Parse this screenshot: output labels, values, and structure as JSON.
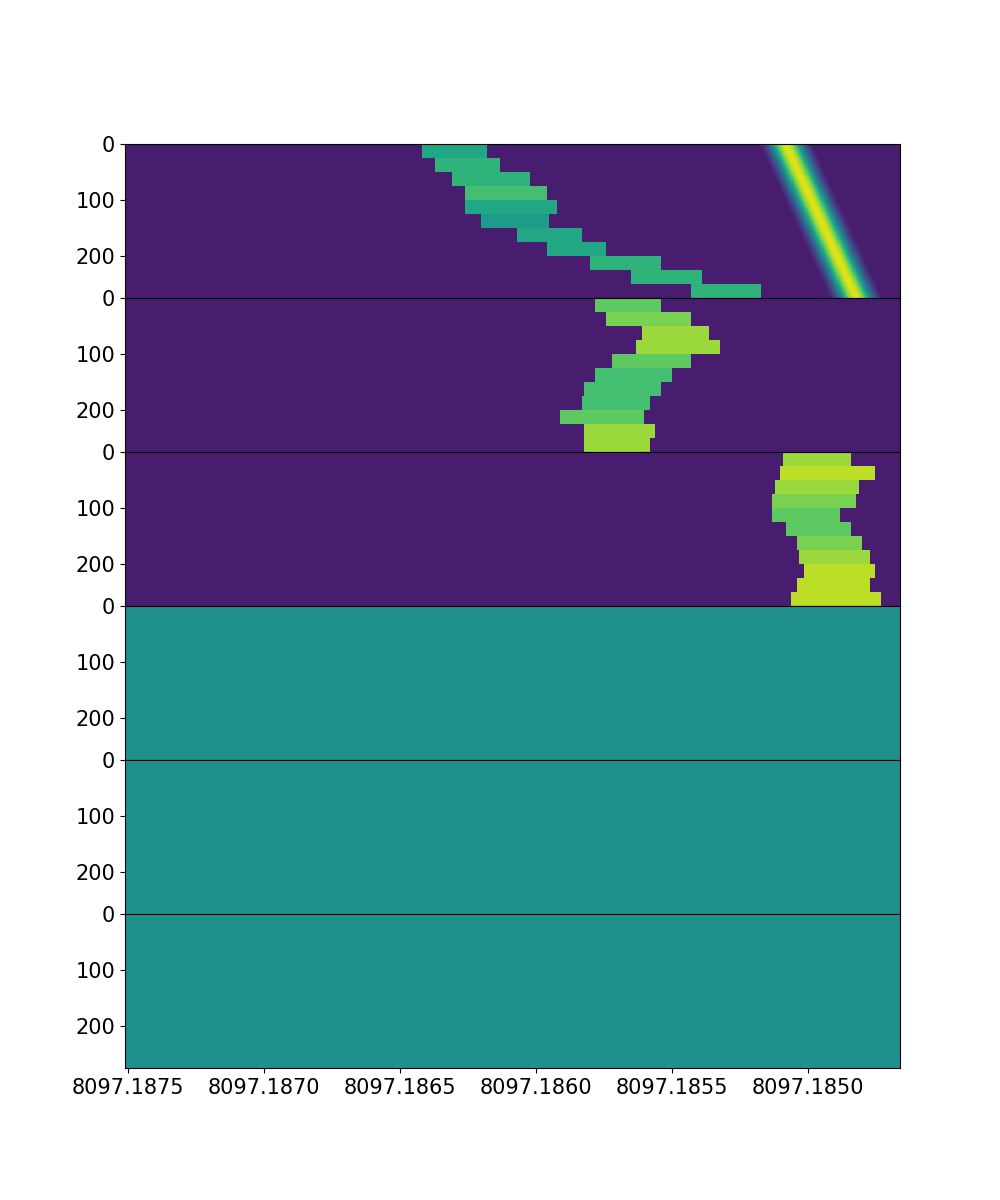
{
  "chart_data": [
    {
      "type": "heatmap",
      "color": "viridis",
      "color_range": [
        0,
        1
      ],
      "background": 0.08,
      "xlim": [
        8097.18751,
        8097.18466
      ],
      "ylim": [
        275,
        0
      ],
      "yticks": [
        0,
        100,
        200
      ],
      "tick_labels": "y",
      "bands": [
        {
          "y0": 0,
          "y1": 25,
          "f0": 8097.18642,
          "f1": 8097.18618,
          "level": 0.6
        },
        {
          "y0": 25,
          "y1": 50,
          "f0": 8097.18637,
          "f1": 8097.18613,
          "level": 0.65
        },
        {
          "y0": 50,
          "y1": 75,
          "f0": 8097.18631,
          "f1": 8097.18602,
          "level": 0.65
        },
        {
          "y0": 75,
          "y1": 100,
          "f0": 8097.18626,
          "f1": 8097.18596,
          "level": 0.7
        },
        {
          "y0": 100,
          "y1": 125,
          "f0": 8097.18626,
          "f1": 8097.18592,
          "level": 0.6
        },
        {
          "y0": 125,
          "y1": 150,
          "f0": 8097.1862,
          "f1": 8097.18595,
          "level": 0.55
        },
        {
          "y0": 150,
          "y1": 175,
          "f0": 8097.18607,
          "f1": 8097.18583,
          "level": 0.6
        },
        {
          "y0": 175,
          "y1": 200,
          "f0": 8097.18596,
          "f1": 8097.18574,
          "level": 0.6
        },
        {
          "y0": 200,
          "y1": 225,
          "f0": 8097.1858,
          "f1": 8097.18554,
          "level": 0.65
        },
        {
          "y0": 225,
          "y1": 250,
          "f0": 8097.18565,
          "f1": 8097.18539,
          "level": 0.65
        },
        {
          "y0": 250,
          "y1": 275,
          "f0": 8097.18543,
          "f1": 8097.18517,
          "level": 0.65
        }
      ],
      "drift_lines": [
        {
          "center_start": 8097.18508,
          "center_end": 8097.18482,
          "sigma": 4.4e-05,
          "peak": 0.95
        }
      ]
    },
    {
      "type": "heatmap",
      "color": "viridis",
      "color_range": [
        0,
        1
      ],
      "background": 0.08,
      "xlim": [
        8097.18751,
        8097.18466
      ],
      "ylim": [
        275,
        0
      ],
      "yticks": [
        0,
        100,
        200
      ],
      "tick_labels": "y",
      "bands": [
        {
          "y0": 0,
          "y1": 25,
          "f0": 8097.18578,
          "f1": 8097.18554,
          "level": 0.75
        },
        {
          "y0": 25,
          "y1": 50,
          "f0": 8097.18574,
          "f1": 8097.18543,
          "level": 0.8
        },
        {
          "y0": 50,
          "y1": 75,
          "f0": 8097.18561,
          "f1": 8097.18536,
          "level": 0.85
        },
        {
          "y0": 75,
          "y1": 100,
          "f0": 8097.18563,
          "f1": 8097.18532,
          "level": 0.85
        },
        {
          "y0": 100,
          "y1": 125,
          "f0": 8097.18572,
          "f1": 8097.18543,
          "level": 0.75
        },
        {
          "y0": 125,
          "y1": 150,
          "f0": 8097.18578,
          "f1": 8097.1855,
          "level": 0.7
        },
        {
          "y0": 150,
          "y1": 175,
          "f0": 8097.18582,
          "f1": 8097.18554,
          "level": 0.7
        },
        {
          "y0": 175,
          "y1": 200,
          "f0": 8097.18583,
          "f1": 8097.18558,
          "level": 0.7
        },
        {
          "y0": 200,
          "y1": 225,
          "f0": 8097.18591,
          "f1": 8097.1856,
          "level": 0.75
        },
        {
          "y0": 225,
          "y1": 250,
          "f0": 8097.18582,
          "f1": 8097.18556,
          "level": 0.85
        },
        {
          "y0": 250,
          "y1": 275,
          "f0": 8097.18582,
          "f1": 8097.18558,
          "level": 0.85
        }
      ],
      "drift_lines": []
    },
    {
      "type": "heatmap",
      "color": "viridis",
      "color_range": [
        0,
        1
      ],
      "background": 0.08,
      "xlim": [
        8097.18751,
        8097.18466
      ],
      "ylim": [
        275,
        0
      ],
      "yticks": [
        0,
        100,
        200
      ],
      "tick_labels": "y",
      "bands": [
        {
          "y0": 0,
          "y1": 25,
          "f0": 8097.18509,
          "f1": 8097.18484,
          "level": 0.85
        },
        {
          "y0": 25,
          "y1": 50,
          "f0": 8097.1851,
          "f1": 8097.18475,
          "level": 0.9
        },
        {
          "y0": 50,
          "y1": 75,
          "f0": 8097.18512,
          "f1": 8097.18481,
          "level": 0.85
        },
        {
          "y0": 75,
          "y1": 100,
          "f0": 8097.18513,
          "f1": 8097.18482,
          "level": 0.8
        },
        {
          "y0": 100,
          "y1": 125,
          "f0": 8097.18513,
          "f1": 8097.18488,
          "level": 0.75
        },
        {
          "y0": 125,
          "y1": 150,
          "f0": 8097.18508,
          "f1": 8097.18484,
          "level": 0.75
        },
        {
          "y0": 150,
          "y1": 175,
          "f0": 8097.18504,
          "f1": 8097.1848,
          "level": 0.8
        },
        {
          "y0": 175,
          "y1": 200,
          "f0": 8097.18503,
          "f1": 8097.18477,
          "level": 0.85
        },
        {
          "y0": 200,
          "y1": 225,
          "f0": 8097.18501,
          "f1": 8097.18475,
          "level": 0.9
        },
        {
          "y0": 225,
          "y1": 250,
          "f0": 8097.18504,
          "f1": 8097.18477,
          "level": 0.9
        },
        {
          "y0": 250,
          "y1": 275,
          "f0": 8097.18506,
          "f1": 8097.18473,
          "level": 0.9
        }
      ],
      "drift_lines": []
    },
    {
      "type": "heatmap",
      "color": "viridis",
      "color_range": [
        0,
        1
      ],
      "background": 0.5,
      "xlim": [
        8097.18751,
        8097.18466
      ],
      "ylim": [
        275,
        0
      ],
      "yticks": [
        0,
        100,
        200
      ],
      "tick_labels": "y",
      "bands": [],
      "drift_lines": []
    },
    {
      "type": "heatmap",
      "color": "viridis",
      "color_range": [
        0,
        1
      ],
      "background": 0.5,
      "xlim": [
        8097.18751,
        8097.18466
      ],
      "ylim": [
        275,
        0
      ],
      "yticks": [
        0,
        100,
        200
      ],
      "tick_labels": "y",
      "bands": [],
      "drift_lines": []
    },
    {
      "type": "heatmap",
      "color": "viridis",
      "color_range": [
        0,
        1
      ],
      "background": 0.5,
      "xlim": [
        8097.18751,
        8097.18466
      ],
      "ylim": [
        275,
        0
      ],
      "yticks": [
        0,
        100,
        200
      ],
      "xticks": [
        {
          "value": 8097.1875,
          "label": "8097.1875"
        },
        {
          "value": 8097.187,
          "label": "8097.1870"
        },
        {
          "value": 8097.1865,
          "label": "8097.1865"
        },
        {
          "value": 8097.186,
          "label": "8097.1860"
        },
        {
          "value": 8097.1855,
          "label": "8097.1855"
        },
        {
          "value": 8097.185,
          "label": "8097.1850"
        }
      ],
      "bands": [],
      "drift_lines": []
    }
  ]
}
